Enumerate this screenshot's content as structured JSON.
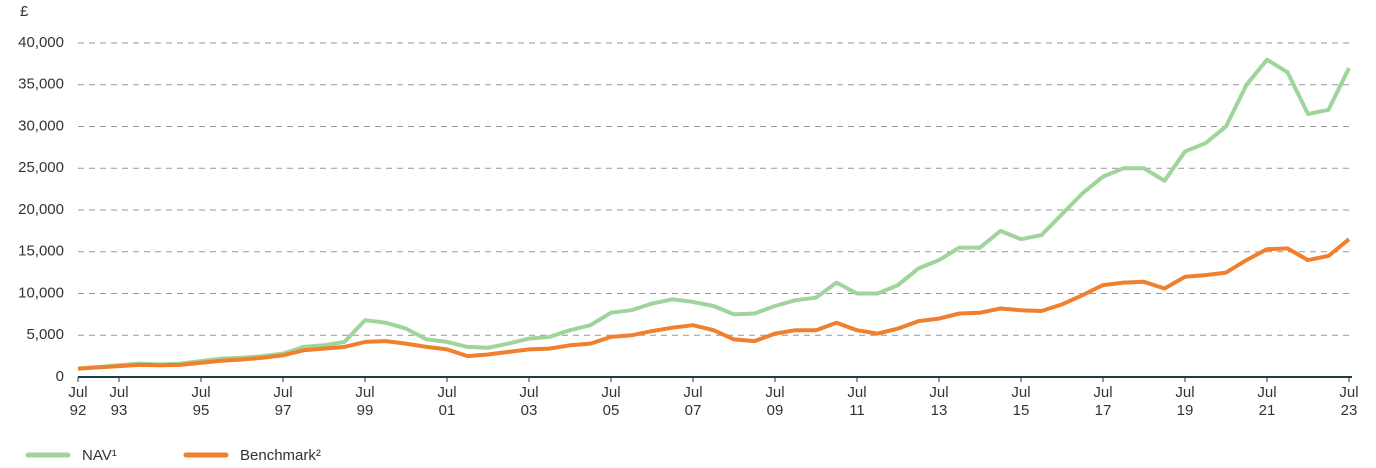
{
  "chart_data": {
    "type": "line",
    "y_label": "£",
    "x": [
      1992.5,
      1993,
      1993.5,
      1994,
      1994.5,
      1995,
      1995.5,
      1996,
      1996.5,
      1997,
      1997.5,
      1998,
      1998.5,
      1999,
      1999.5,
      2000,
      2000.5,
      2001,
      2001.5,
      2002,
      2002.5,
      2003,
      2003.5,
      2004,
      2004.5,
      2005,
      2005.5,
      2006,
      2006.5,
      2007,
      2007.5,
      2008,
      2008.5,
      2009,
      2009.5,
      2010,
      2010.5,
      2011,
      2011.5,
      2012,
      2012.5,
      2013,
      2013.5,
      2014,
      2014.5,
      2015,
      2015.5,
      2016,
      2016.5,
      2017,
      2017.5,
      2018,
      2018.5,
      2019,
      2019.5,
      2020,
      2020.5,
      2021,
      2021.5,
      2022,
      2022.5,
      2023,
      2023.5
    ],
    "series": [
      {
        "name": "NAV¹",
        "color": "#9fd49a",
        "values": [
          1000,
          1200,
          1400,
          1600,
          1500,
          1600,
          1900,
          2200,
          2300,
          2500,
          2800,
          3600,
          3800,
          4200,
          6800,
          6500,
          5800,
          4500,
          4200,
          3600,
          3500,
          4000,
          4600,
          4800,
          5600,
          6200,
          7700,
          8000,
          8800,
          9300,
          9000,
          8500,
          7500,
          7600,
          8500,
          9200,
          9500,
          11300,
          10000,
          10000,
          11000,
          13000,
          14000,
          15500,
          15500,
          17500,
          16500,
          17000,
          19500,
          22000,
          24000,
          25000,
          25000,
          23500,
          27000,
          28000,
          30000,
          35000,
          38000,
          36500,
          31500,
          32000,
          37000
        ]
      },
      {
        "name": "Benchmark²",
        "color": "#f07f2e",
        "values": [
          1000,
          1150,
          1300,
          1450,
          1400,
          1450,
          1700,
          1950,
          2100,
          2300,
          2600,
          3200,
          3400,
          3600,
          4200,
          4300,
          4000,
          3600,
          3300,
          2500,
          2700,
          3000,
          3300,
          3400,
          3800,
          4000,
          4800,
          5000,
          5500,
          5900,
          6200,
          5600,
          4500,
          4300,
          5200,
          5600,
          5600,
          6500,
          5600,
          5200,
          5800,
          6700,
          7000,
          7600,
          7700,
          8200,
          8000,
          7900,
          8700,
          9800,
          11000,
          11300,
          11400,
          10600,
          12000,
          12200,
          12500,
          14000,
          15300,
          15400,
          14000,
          14500,
          16500
        ]
      }
    ],
    "xlim": [
      1992.5,
      2023.5
    ],
    "xticks": [
      {
        "value": 1992.5,
        "label": "Jul 92"
      },
      {
        "value": 1993.5,
        "label": "Jul 93"
      },
      {
        "value": 1995.5,
        "label": "Jul 95"
      },
      {
        "value": 1997.5,
        "label": "Jul 97"
      },
      {
        "value": 1999.5,
        "label": "Jul 99"
      },
      {
        "value": 2001.5,
        "label": "Jul 01"
      },
      {
        "value": 2003.5,
        "label": "Jul 03"
      },
      {
        "value": 2005.5,
        "label": "Jul 05"
      },
      {
        "value": 2007.5,
        "label": "Jul 07"
      },
      {
        "value": 2009.5,
        "label": "Jul 09"
      },
      {
        "value": 2011.5,
        "label": "Jul 11"
      },
      {
        "value": 2013.5,
        "label": "Jul 13"
      },
      {
        "value": 2015.5,
        "label": "Jul 15"
      },
      {
        "value": 2017.5,
        "label": "Jul 17"
      },
      {
        "value": 2019.5,
        "label": "Jul 19"
      },
      {
        "value": 2021.5,
        "label": "Jul 21"
      },
      {
        "value": 2023.5,
        "label": "Jul 23"
      }
    ],
    "ylim": [
      0,
      40000
    ],
    "yticks": [
      0,
      {
        "value": 5000,
        "label": "5,000"
      },
      {
        "value": 10000,
        "label": "10,000"
      },
      {
        "value": 15000,
        "label": "15,000"
      },
      {
        "value": 20000,
        "label": "20,000"
      },
      {
        "value": 25000,
        "label": "25,000"
      },
      {
        "value": 30000,
        "label": "30,000"
      },
      {
        "value": 35000,
        "label": "35,000"
      },
      {
        "value": 40000,
        "label": "40,000"
      }
    ],
    "grid": true,
    "legend": "bottom-left"
  }
}
